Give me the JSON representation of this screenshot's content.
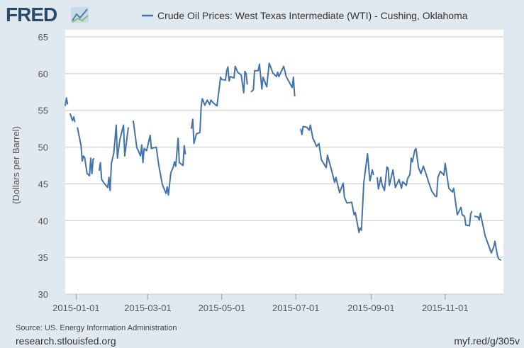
{
  "logo": "FRED",
  "chart_data": {
    "type": "line",
    "title": "Crude Oil Prices: West Texas Intermediate (WTI) - Cushing, Oklahoma",
    "legend": [
      {
        "name": "Crude Oil Prices: West Texas Intermediate (WTI) - Cushing, Oklahoma",
        "color": "#4572a7"
      }
    ],
    "legend_position": "top-center",
    "xlabel": "",
    "ylabel": "(Dollars per Barrel)",
    "ylim": [
      30,
      65
    ],
    "yticks": [
      30,
      35,
      40,
      45,
      50,
      55,
      60,
      65
    ],
    "x_unit": "days since 2015-01-01",
    "xlim": [
      -9,
      352
    ],
    "xticks": [
      {
        "day": 0,
        "label": "2015-01-01"
      },
      {
        "day": 59,
        "label": "2015-03-01"
      },
      {
        "day": 120,
        "label": "2015-05-01"
      },
      {
        "day": 181,
        "label": "2015-07-01"
      },
      {
        "day": 243,
        "label": "2015-09-01"
      },
      {
        "day": 304,
        "label": "2015-11-01"
      }
    ],
    "grid": true,
    "series": [
      {
        "name": "WTI",
        "points": [
          [
            -9,
            55.6
          ],
          [
            -8,
            56.7
          ],
          [
            -7,
            55.8
          ],
          null,
          [
            -5,
            54.6
          ],
          [
            -3,
            53.6
          ],
          [
            -2,
            54.1
          ],
          [
            -1,
            53.4
          ],
          null,
          [
            1,
            52.7
          ],
          [
            4,
            50.2
          ],
          [
            5,
            48.1
          ],
          [
            6,
            48.8
          ],
          [
            7,
            48.6
          ],
          [
            9,
            46.4
          ],
          [
            11,
            46.1
          ],
          [
            12,
            48.5
          ],
          [
            13,
            46.4
          ],
          [
            14,
            48.4
          ],
          [
            15,
            48.4
          ],
          null,
          [
            19,
            46.8
          ],
          [
            20,
            47.9
          ],
          [
            21,
            45.6
          ],
          [
            23,
            45.1
          ],
          [
            26,
            44.5
          ],
          [
            27,
            45.9
          ],
          [
            28,
            44.1
          ],
          [
            29,
            47.8
          ],
          [
            31,
            49.2
          ],
          [
            33,
            53.0
          ],
          [
            34,
            48.5
          ],
          [
            36,
            51.0
          ],
          [
            39,
            53.0
          ],
          [
            40,
            48.8
          ],
          [
            43,
            52.7
          ],
          null,
          [
            47,
            53.6
          ],
          [
            50,
            49.9
          ],
          [
            51,
            49.6
          ],
          [
            53,
            48.8
          ],
          [
            54,
            50.3
          ],
          [
            55,
            47.9
          ],
          [
            56,
            49.8
          ],
          [
            58,
            49.5
          ],
          [
            61,
            51.6
          ],
          [
            62,
            49.8
          ],
          [
            66,
            50.0
          ],
          [
            68,
            47.6
          ],
          [
            69,
            46.7
          ],
          [
            71,
            44.9
          ],
          [
            74,
            43.7
          ],
          [
            75,
            44.6
          ],
          [
            76,
            43.5
          ],
          [
            78,
            46.5
          ],
          [
            80,
            47.3
          ],
          [
            81,
            48.0
          ],
          [
            82,
            47.4
          ],
          [
            84,
            51.2
          ],
          [
            85,
            47.9
          ],
          [
            88,
            47.5
          ],
          [
            89,
            50.2
          ],
          [
            90,
            49.0
          ],
          null,
          [
            95,
            52.5
          ],
          [
            96,
            53.8
          ],
          [
            97,
            50.5
          ],
          [
            99,
            51.8
          ],
          [
            102,
            52.0
          ],
          [
            103,
            55.5
          ],
          [
            104,
            56.6
          ],
          [
            106,
            55.7
          ],
          [
            108,
            56.4
          ],
          [
            110,
            55.8
          ],
          [
            111,
            56.4
          ],
          [
            113,
            56.0
          ],
          [
            116,
            55.6
          ],
          [
            119,
            59.5
          ],
          [
            120,
            59.2
          ],
          [
            123,
            59.1
          ],
          [
            124,
            60.4
          ],
          [
            125,
            60.9
          ],
          [
            126,
            59.0
          ],
          [
            127,
            59.6
          ],
          [
            130,
            59.4
          ],
          [
            131,
            61.0
          ],
          [
            133,
            60.2
          ],
          [
            136,
            59.8
          ],
          [
            138,
            57.4
          ],
          [
            139,
            60.3
          ],
          [
            140,
            60.0
          ],
          [
            141,
            58.5
          ],
          null,
          [
            144,
            57.5
          ],
          [
            146,
            57.8
          ],
          [
            147,
            60.4
          ],
          [
            150,
            60.4
          ],
          [
            151,
            61.3
          ],
          [
            153,
            57.9
          ],
          [
            154,
            59.5
          ],
          [
            157,
            58.2
          ],
          [
            159,
            61.4
          ],
          [
            160,
            61.0
          ],
          [
            162,
            60.1
          ],
          [
            165,
            59.6
          ],
          [
            166,
            60.2
          ],
          [
            167,
            59.6
          ],
          [
            169,
            60.3
          ],
          [
            171,
            61.0
          ],
          [
            173,
            59.6
          ],
          [
            175,
            59.0
          ],
          [
            178,
            58.1
          ],
          [
            179,
            59.5
          ],
          [
            180,
            56.9
          ],
          null,
          [
            185,
            52.5
          ],
          [
            186,
            51.7
          ],
          [
            187,
            52.8
          ],
          [
            190,
            52.7
          ],
          [
            192,
            52.3
          ],
          [
            193,
            53.0
          ],
          [
            195,
            51.2
          ],
          [
            196,
            50.9
          ],
          [
            198,
            50.1
          ],
          [
            200,
            50.5
          ],
          [
            202,
            48.3
          ],
          [
            206,
            47.2
          ],
          [
            207,
            48.9
          ],
          [
            210,
            47.1
          ],
          [
            213,
            45.2
          ],
          [
            214,
            45.9
          ],
          [
            217,
            43.8
          ],
          [
            220,
            45.1
          ],
          [
            221,
            43.2
          ],
          [
            223,
            42.4
          ],
          [
            227,
            42.5
          ],
          [
            229,
            40.8
          ],
          [
            230,
            41.1
          ],
          [
            233,
            38.4
          ],
          [
            234,
            39.0
          ],
          [
            235,
            38.7
          ],
          [
            237,
            45.2
          ],
          [
            240,
            49.1
          ],
          [
            242,
            45.4
          ],
          [
            244,
            46.9
          ],
          [
            245,
            46.2
          ],
          null,
          [
            248,
            45.9
          ],
          [
            249,
            44.3
          ],
          [
            251,
            45.9
          ],
          [
            252,
            44.9
          ],
          [
            254,
            44.1
          ],
          [
            256,
            47.3
          ],
          [
            257,
            47.1
          ],
          [
            258,
            44.8
          ],
          [
            261,
            46.9
          ],
          [
            263,
            44.5
          ],
          [
            266,
            45.6
          ],
          [
            268,
            44.4
          ],
          [
            269,
            45.3
          ],
          [
            272,
            44.8
          ],
          [
            273,
            45.7
          ],
          [
            275,
            46.3
          ],
          [
            276,
            48.5
          ],
          [
            277,
            48.0
          ],
          [
            279,
            49.6
          ],
          [
            280,
            49.8
          ],
          [
            282,
            47.2
          ],
          [
            284,
            46.4
          ],
          [
            286,
            47.4
          ],
          [
            289,
            46.0
          ],
          [
            290,
            45.4
          ],
          [
            293,
            44.0
          ],
          [
            296,
            43.3
          ],
          [
            297,
            43.3
          ],
          [
            298,
            45.9
          ],
          [
            300,
            46.7
          ],
          [
            303,
            46.2
          ],
          [
            304,
            47.8
          ],
          [
            307,
            44.4
          ],
          [
            310,
            43.9
          ],
          [
            311,
            44.4
          ],
          [
            314,
            40.8
          ],
          [
            317,
            41.8
          ],
          [
            318,
            40.8
          ],
          [
            320,
            40.6
          ],
          [
            321,
            39.4
          ],
          [
            324,
            39.3
          ],
          [
            325,
            40.9
          ],
          [
            326,
            41.3
          ],
          null,
          [
            328,
            40.6
          ],
          [
            331,
            40.5
          ],
          [
            332,
            40.1
          ],
          [
            333,
            41.0
          ],
          [
            337,
            37.9
          ],
          [
            339,
            37.0
          ],
          [
            342,
            35.6
          ],
          [
            344,
            36.4
          ],
          [
            345,
            37.2
          ],
          [
            347,
            35.3
          ],
          [
            348,
            34.8
          ],
          [
            350,
            34.6
          ]
        ]
      }
    ]
  },
  "footer": {
    "source": "Source: US. Energy Information Administration",
    "site": "research.stlouisfed.org",
    "short_link": "myf.red/g/305v"
  },
  "colors": {
    "line": "#4572a7",
    "grid": "#d8d8d8",
    "background": "#e1e9f0"
  }
}
